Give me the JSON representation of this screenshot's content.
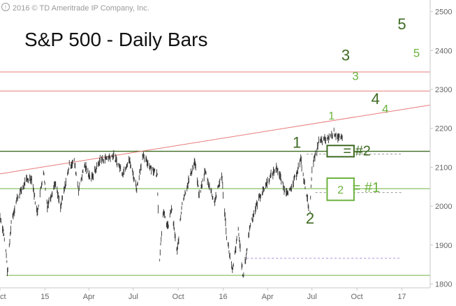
{
  "copyright": "2016 © TD Ameritrade IP Company, Inc.",
  "title": "S&P 500 - Daily Bars",
  "colors": {
    "price": "#333333",
    "red_line": "#e87b7b",
    "dark_green": "#3e6b22",
    "light_green": "#6db33f",
    "dashed": "#9a9a9a",
    "purple_dashed": "#b58de0",
    "axis_text": "#666666"
  },
  "chart_data": {
    "type": "bar",
    "title": "S&P 500 - Daily Bars",
    "xlabel": "",
    "ylabel": "",
    "x_range": [
      "2014-10-01",
      "2017-02-28"
    ],
    "ylim": [
      1790,
      2530
    ],
    "x_ticks": [
      {
        "date": "2014-10-01",
        "label": "Oct"
      },
      {
        "date": "2015-01-01",
        "label": "15"
      },
      {
        "date": "2015-04-01",
        "label": "Apr"
      },
      {
        "date": "2015-07-01",
        "label": "Jul"
      },
      {
        "date": "2015-10-01",
        "label": "Oct"
      },
      {
        "date": "2016-01-01",
        "label": "16"
      },
      {
        "date": "2016-04-01",
        "label": "Apr"
      },
      {
        "date": "2016-07-01",
        "label": "Jul"
      },
      {
        "date": "2016-10-01",
        "label": "Oct"
      },
      {
        "date": "2017-01-01",
        "label": "17"
      }
    ],
    "y_ticks": [
      1800,
      1900,
      2000,
      2100,
      2200,
      2300,
      2400,
      2500
    ],
    "y_tick_labels": [
      "1800",
      "1900",
      "2000",
      "2100",
      "2200",
      "2300",
      "2400",
      "2500"
    ],
    "price_path": [
      [
        "2014-10-01",
        1975
      ],
      [
        "2014-10-08",
        1935
      ],
      [
        "2014-10-15",
        1862
      ],
      [
        "2014-10-16",
        1825
      ],
      [
        "2014-10-24",
        1960
      ],
      [
        "2014-11-05",
        2020
      ],
      [
        "2014-11-25",
        2068
      ],
      [
        "2014-12-05",
        2072
      ],
      [
        "2014-12-16",
        1982
      ],
      [
        "2014-12-29",
        2090
      ],
      [
        "2015-01-06",
        2000
      ],
      [
        "2015-01-22",
        2060
      ],
      [
        "2015-02-02",
        1995
      ],
      [
        "2015-02-20",
        2105
      ],
      [
        "2015-03-02",
        2115
      ],
      [
        "2015-03-11",
        2042
      ],
      [
        "2015-03-23",
        2105
      ],
      [
        "2015-04-06",
        2070
      ],
      [
        "2015-04-24",
        2118
      ],
      [
        "2015-05-21",
        2130
      ],
      [
        "2015-06-10",
        2085
      ],
      [
        "2015-06-22",
        2122
      ],
      [
        "2015-07-08",
        2046
      ],
      [
        "2015-07-20",
        2128
      ],
      [
        "2015-08-05",
        2102
      ],
      [
        "2015-08-19",
        2080
      ],
      [
        "2015-08-24",
        1868
      ],
      [
        "2015-08-31",
        1985
      ],
      [
        "2015-09-10",
        1945
      ],
      [
        "2015-09-17",
        1995
      ],
      [
        "2015-09-29",
        1880
      ],
      [
        "2015-10-09",
        2010
      ],
      [
        "2015-10-26",
        2080
      ],
      [
        "2015-11-04",
        2115
      ],
      [
        "2015-11-13",
        2025
      ],
      [
        "2015-11-25",
        2090
      ],
      [
        "2015-12-14",
        2010
      ],
      [
        "2015-12-29",
        2080
      ],
      [
        "2016-01-08",
        1925
      ],
      [
        "2016-01-20",
        1830
      ],
      [
        "2016-02-01",
        1940
      ],
      [
        "2016-02-11",
        1815
      ],
      [
        "2016-02-25",
        1950
      ],
      [
        "2016-03-14",
        2020
      ],
      [
        "2016-04-04",
        2070
      ],
      [
        "2016-04-20",
        2100
      ],
      [
        "2016-05-06",
        2040
      ],
      [
        "2016-05-19",
        2040
      ],
      [
        "2016-06-08",
        2120
      ],
      [
        "2016-06-14",
        2070
      ],
      [
        "2016-06-24",
        2000
      ],
      [
        "2016-06-27",
        1990
      ],
      [
        "2016-07-01",
        2100
      ],
      [
        "2016-07-08",
        2130
      ],
      [
        "2016-07-15",
        2165
      ],
      [
        "2016-08-01",
        2172
      ],
      [
        "2016-08-15",
        2190
      ],
      [
        "2016-08-25",
        2175
      ],
      [
        "2016-09-01",
        2172
      ]
    ],
    "horizontal_lines": [
      {
        "price": 2345,
        "style": "red"
      },
      {
        "price": 2296,
        "style": "red"
      },
      {
        "price": 2141,
        "style": "dark-green"
      },
      {
        "price": 2045,
        "style": "light-green"
      },
      {
        "price": 1822,
        "style": "light-green",
        "from": "2014-10-14"
      }
    ],
    "dashed_lines": [
      {
        "price": 2134,
        "from": "2016-06-20",
        "to": "2016-12-31",
        "style": "grey"
      },
      {
        "price": 2035,
        "from": "2016-07-08",
        "to": "2016-12-31",
        "style": "grey"
      },
      {
        "price": 1866,
        "from": "2016-02-18",
        "to": "2016-12-31",
        "style": "purple"
      }
    ],
    "trendline": {
      "from": [
        "2014-10-01",
        2083
      ],
      "to": [
        "2017-02-28",
        2260
      ]
    },
    "boxes": [
      {
        "label": "",
        "from": "2016-08-01",
        "to": "2016-09-25",
        "low": 2127,
        "high": 2156,
        "style": "dark-green"
      },
      {
        "label": "2",
        "from": "2016-08-01",
        "to": "2016-09-25",
        "low": 2015,
        "high": 2072,
        "style": "light-green"
      }
    ],
    "annotations": [
      {
        "text": "1",
        "date": "2016-05-31",
        "price": 2150,
        "style": "dark-green",
        "size": 22
      },
      {
        "text": "2",
        "date": "2016-06-27",
        "price": 1955,
        "style": "dark-green",
        "size": 22
      },
      {
        "text": "1",
        "date": "2016-08-10",
        "price": 2223,
        "style": "light-green",
        "size": 16
      },
      {
        "text": "3",
        "date": "2016-09-08",
        "price": 2375,
        "style": "dark-green",
        "size": 22
      },
      {
        "text": "3",
        "date": "2016-09-28",
        "price": 2324,
        "style": "light-green",
        "size": 17
      },
      {
        "text": "4",
        "date": "2016-11-08",
        "price": 2262,
        "style": "dark-green",
        "size": 22
      },
      {
        "text": "4",
        "date": "2016-11-28",
        "price": 2240,
        "style": "light-green",
        "size": 17
      },
      {
        "text": "5",
        "date": "2017-01-01",
        "price": 2455,
        "style": "dark-green",
        "size": 22
      },
      {
        "text": "5",
        "date": "2017-01-31",
        "price": 2384,
        "style": "light-green",
        "size": 17
      },
      {
        "text": "= #2",
        "date": "2016-10-01",
        "price": 2130,
        "style": "dark-green",
        "size": 20
      },
      {
        "text": "= #1",
        "date": "2016-10-20",
        "price": 2036,
        "style": "light-green",
        "size": 20
      }
    ],
    "grid": false,
    "legend": "none"
  }
}
